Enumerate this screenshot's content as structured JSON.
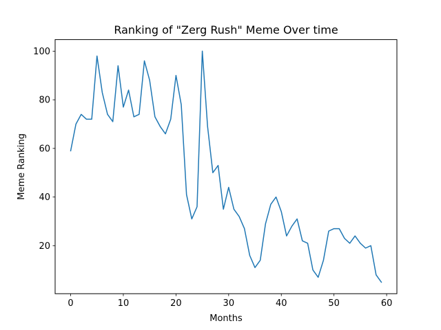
{
  "chart_data": {
    "type": "line",
    "title": "Ranking of \"Zerg Rush\" Meme Over time",
    "xlabel": "Months",
    "ylabel": "Meme Ranking",
    "xlim": [
      -2.95,
      61.95
    ],
    "ylim": [
      0.25,
      104.75
    ],
    "xticks": [
      0,
      10,
      20,
      30,
      40,
      50,
      60
    ],
    "yticks": [
      20,
      40,
      60,
      80,
      100
    ],
    "grid": false,
    "legend": "none",
    "line_color": "#1f77b4",
    "series": [
      {
        "x": [
          0,
          1,
          2,
          3,
          4,
          5,
          6,
          7,
          8,
          9,
          10,
          11,
          12,
          13,
          14,
          15,
          16,
          17,
          18,
          19,
          20,
          21,
          22,
          23,
          24,
          25,
          26,
          27,
          28,
          29,
          30,
          31,
          32,
          33,
          34,
          35,
          36,
          37,
          38,
          39,
          40,
          41,
          42,
          43,
          44,
          45,
          46,
          47,
          48,
          49,
          50,
          51,
          52,
          53,
          54,
          55,
          56,
          57,
          58,
          59
        ],
        "values": [
          59,
          70,
          74,
          72,
          72,
          98,
          83,
          74,
          71,
          94,
          77,
          84,
          73,
          74,
          96,
          88,
          73,
          69,
          66,
          72,
          90,
          78,
          41,
          31,
          36,
          100,
          69,
          50,
          53,
          35,
          44,
          35,
          32,
          27,
          16,
          11,
          14,
          29,
          37,
          40,
          34,
          24,
          28,
          31,
          22,
          21,
          10,
          7,
          14,
          26,
          27,
          27,
          23,
          21,
          24,
          21,
          19,
          20,
          8,
          5
        ]
      }
    ]
  }
}
